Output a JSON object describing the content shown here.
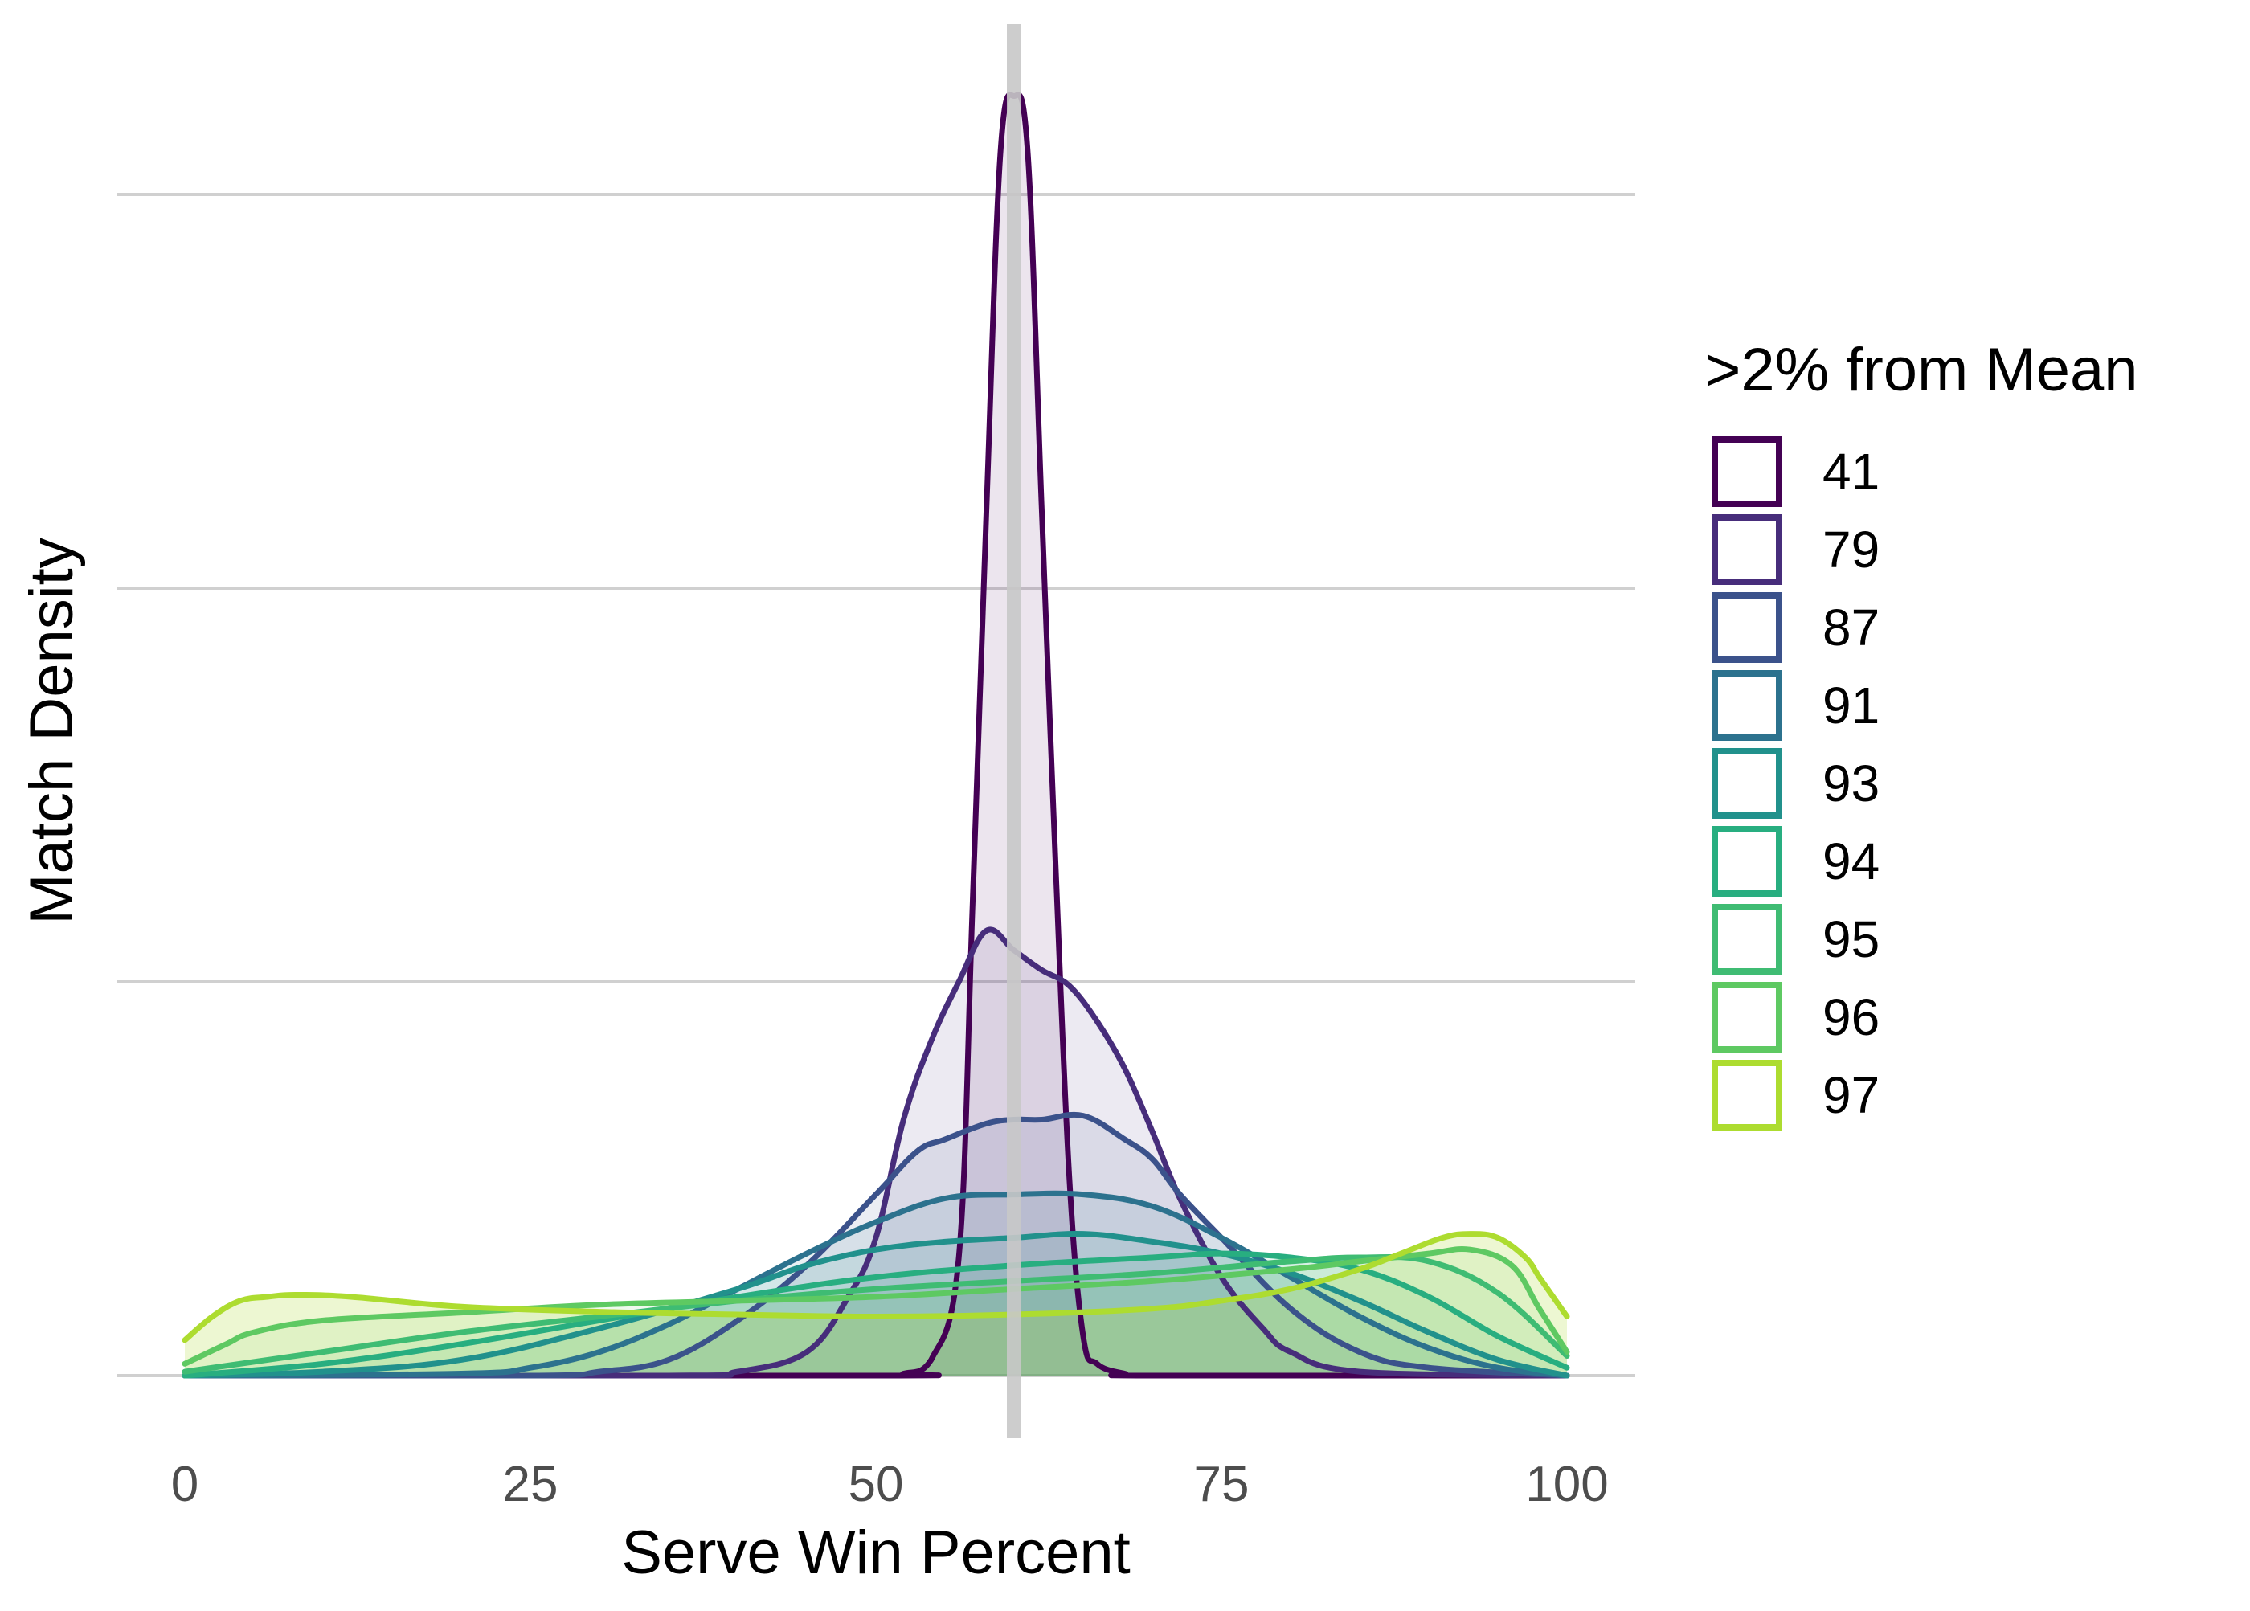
{
  "chart_data": {
    "type": "area",
    "chart_kind": "density",
    "title": "",
    "xlabel": "Serve Win Percent",
    "ylabel": "Match Density",
    "xlim": [
      0,
      100
    ],
    "ylim": [
      0,
      0.34
    ],
    "x_ticks": [
      0,
      25,
      50,
      75,
      100
    ],
    "x_tick_labels": [
      "0",
      "25",
      "50",
      "75",
      "100"
    ],
    "y_gridlines": [
      0,
      0.1,
      0.2,
      0.3
    ],
    "y_tick_labels_shown": false,
    "grid": true,
    "reference_line": {
      "x": 60,
      "color": "#c8c8c8"
    },
    "legend": {
      "title": ">2% from Mean",
      "position": "right"
    },
    "series": [
      {
        "name": "41",
        "color": "#440154",
        "fill_opacity": 0.1,
        "x": [
          0,
          50,
          52,
          54,
          56,
          57,
          58,
          59,
          60,
          61,
          62,
          63,
          64,
          65,
          66,
          68,
          70,
          100
        ],
        "y": [
          0,
          0,
          0.0005,
          0.004,
          0.03,
          0.12,
          0.22,
          0.31,
          0.325,
          0.31,
          0.22,
          0.13,
          0.05,
          0.01,
          0.003,
          0.0005,
          0,
          0
        ]
      },
      {
        "name": "79",
        "color": "#472d7b",
        "fill_opacity": 0.1,
        "x": [
          0,
          35,
          40,
          45,
          48,
          50,
          52,
          54,
          56,
          58,
          60,
          62,
          64,
          66,
          68,
          70,
          72,
          75,
          78,
          80,
          85,
          100
        ],
        "y": [
          0,
          0,
          0.001,
          0.006,
          0.02,
          0.035,
          0.065,
          0.085,
          0.1,
          0.113,
          0.108,
          0.103,
          0.099,
          0.09,
          0.078,
          0.062,
          0.045,
          0.025,
          0.012,
          0.006,
          0.001,
          0
        ]
      },
      {
        "name": "87",
        "color": "#3b528b",
        "fill_opacity": 0.1,
        "x": [
          0,
          25,
          30,
          35,
          40,
          45,
          50,
          53,
          55,
          58,
          60,
          62,
          65,
          68,
          70,
          72,
          75,
          80,
          85,
          90,
          100
        ],
        "y": [
          0,
          0,
          0.001,
          0.004,
          0.014,
          0.028,
          0.046,
          0.057,
          0.06,
          0.064,
          0.065,
          0.065,
          0.066,
          0.06,
          0.055,
          0.046,
          0.035,
          0.017,
          0.006,
          0.002,
          0
        ]
      },
      {
        "name": "91",
        "color": "#2c728e",
        "fill_opacity": 0.1,
        "x": [
          0,
          20,
          25,
          30,
          35,
          40,
          45,
          50,
          55,
          60,
          65,
          70,
          75,
          80,
          85,
          90,
          95,
          100
        ],
        "y": [
          0,
          0.0005,
          0.002,
          0.006,
          0.013,
          0.022,
          0.031,
          0.039,
          0.045,
          0.046,
          0.046,
          0.043,
          0.035,
          0.025,
          0.015,
          0.007,
          0.002,
          0
        ]
      },
      {
        "name": "93",
        "color": "#21918c",
        "fill_opacity": 0.1,
        "x": [
          0,
          10,
          20,
          30,
          40,
          45,
          50,
          55,
          60,
          65,
          70,
          75,
          80,
          85,
          90,
          95,
          100
        ],
        "y": [
          0,
          0.001,
          0.004,
          0.012,
          0.022,
          0.028,
          0.032,
          0.034,
          0.035,
          0.036,
          0.034,
          0.031,
          0.026,
          0.019,
          0.011,
          0.004,
          0
        ]
      },
      {
        "name": "94",
        "color": "#28ae80",
        "fill_opacity": 0.1,
        "x": [
          0,
          10,
          20,
          30,
          40,
          50,
          60,
          70,
          75,
          80,
          85,
          90,
          95,
          100
        ],
        "y": [
          0,
          0.003,
          0.008,
          0.014,
          0.02,
          0.025,
          0.028,
          0.03,
          0.031,
          0.03,
          0.027,
          0.02,
          0.01,
          0.002
        ]
      },
      {
        "name": "95",
        "color": "#3fbc73",
        "fill_opacity": 0.1,
        "x": [
          0,
          10,
          20,
          30,
          40,
          50,
          60,
          70,
          80,
          85,
          90,
          95,
          100
        ],
        "y": [
          0.001,
          0.006,
          0.011,
          0.015,
          0.019,
          0.022,
          0.024,
          0.026,
          0.029,
          0.03,
          0.029,
          0.021,
          0.005
        ]
      },
      {
        "name": "96",
        "color": "#5ec962",
        "fill_opacity": 0.1,
        "x": [
          0,
          3,
          5,
          10,
          20,
          30,
          40,
          50,
          60,
          70,
          80,
          85,
          90,
          93,
          96,
          98,
          100
        ],
        "y": [
          0.003,
          0.008,
          0.011,
          0.014,
          0.016,
          0.018,
          0.019,
          0.02,
          0.022,
          0.024,
          0.027,
          0.029,
          0.031,
          0.032,
          0.028,
          0.017,
          0.006
        ]
      },
      {
        "name": "97",
        "color": "#addc30",
        "fill_opacity": 0.22,
        "x": [
          0,
          2,
          4,
          6,
          8,
          12,
          20,
          30,
          40,
          50,
          60,
          70,
          75,
          80,
          85,
          88,
          91,
          93,
          95,
          97,
          98,
          99,
          100
        ],
        "y": [
          0.009,
          0.015,
          0.019,
          0.02,
          0.0205,
          0.02,
          0.0175,
          0.0162,
          0.0155,
          0.015,
          0.0155,
          0.017,
          0.019,
          0.022,
          0.027,
          0.031,
          0.035,
          0.036,
          0.035,
          0.03,
          0.025,
          0.02,
          0.015
        ]
      }
    ]
  }
}
